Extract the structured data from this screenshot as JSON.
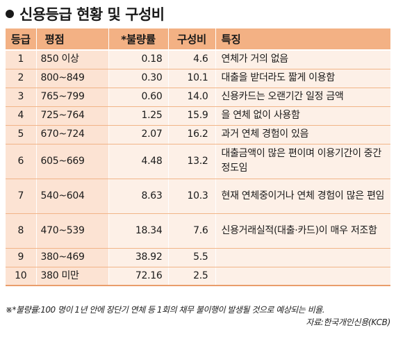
{
  "title": "신용등급 현황 및 구성비",
  "headers": [
    "등급",
    "평점",
    "*불량률",
    "구성비",
    "특징"
  ],
  "rows": [
    {
      "grade": "1",
      "score": "850 이상",
      "default_rate": "0.18",
      "ratio": "4.6",
      "feature": "연체가 거의 없음"
    },
    {
      "grade": "2",
      "score": "800~849",
      "default_rate": "0.30",
      "ratio": "10.1",
      "feature": "대출을 받더라도 짧게 이용함"
    },
    {
      "grade": "3",
      "score": "765~799",
      "default_rate": "0.60",
      "ratio": "14.0",
      "feature": "신용카드는 오랜기간 일정 금액"
    },
    {
      "grade": "4",
      "score": "725~764",
      "default_rate": "1.25",
      "ratio": "15.9",
      "feature": "을 연체 없이 사용함"
    },
    {
      "grade": "5",
      "score": "670~724",
      "default_rate": "2.07",
      "ratio": "16.2",
      "feature": "과거 연체 경험이 있음"
    },
    {
      "grade": "6",
      "score": "605~669",
      "default_rate": "4.48",
      "ratio": "13.2",
      "feature": "대출금액이 많은 편이며 이용기간이 중간 정도임"
    },
    {
      "grade": "7",
      "score": "540~604",
      "default_rate": "8.63",
      "ratio": "10.3",
      "feature": "현재 연체중이거나 연체 경험이 많은 편임"
    },
    {
      "grade": "8",
      "score": "470~539",
      "default_rate": "18.34",
      "ratio": "7.6",
      "feature": "신용거래실적(대출·카드)이 매우 저조함"
    },
    {
      "grade": "9",
      "score": "380~469",
      "default_rate": "38.92",
      "ratio": "5.5",
      "feature": ""
    },
    {
      "grade": "10",
      "score": "380 미만",
      "default_rate": "72.16",
      "ratio": "2.5",
      "feature": ""
    }
  ],
  "footnote": "※*불량률:100 명이 1년 안에 장단기 연체 등 1회의 채무 불이행이 발생될 것으로 예상되는 비율.",
  "source": "자료:한국개인신용(KCB)",
  "colors": {
    "header_bg": "#f3b184",
    "left_col_bg": "#fce3d3",
    "body_bg": "#fdf0e7",
    "row_border": "#f1b487"
  }
}
